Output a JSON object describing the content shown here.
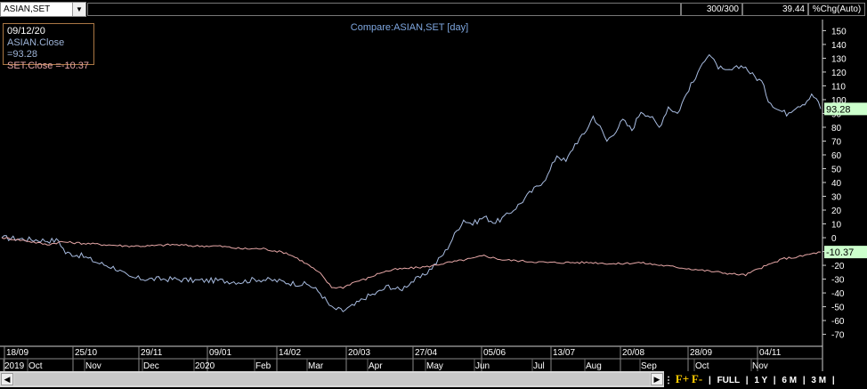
{
  "header": {
    "symbol": "ASIAN,SET",
    "bars": "300/300",
    "change": "39.44",
    "mode": "%Chg(Auto)"
  },
  "legend": {
    "date": "09/12/20",
    "asian": "ASIAN.Close  =93.28",
    "set": "SET.Close  =-10.37"
  },
  "colors": {
    "asian": "#a9bde2",
    "set": "#e8a8a8",
    "title": "#7fa7e0"
  },
  "footer": {
    "f_plus": "F+",
    "f_minus": "F-",
    "ranges": [
      "FULL",
      "1 Y",
      "6 M",
      "3 M"
    ]
  },
  "chart_data": {
    "type": "line",
    "title": "Compare:ASIAN,SET [day]",
    "ylim": [
      -78,
      158
    ],
    "yticks": [
      150,
      140,
      130,
      120,
      110,
      100,
      90,
      80,
      70,
      60,
      50,
      40,
      30,
      20,
      10,
      0,
      -10,
      -20,
      -30,
      -40,
      -50,
      -60,
      -70
    ],
    "x_date_ticks": [
      "18/09",
      "25/10",
      "29/11",
      "09/01",
      "14/02",
      "20/03",
      "27/04",
      "05/06",
      "13/07",
      "20/08",
      "28/09",
      "04/11"
    ],
    "x_month_ticks": [
      "2019",
      "Oct",
      "Nov",
      "Dec",
      "2020",
      "Feb",
      "Mar",
      "Apr",
      "May",
      "Jun",
      "Jul",
      "Aug",
      "Sep",
      "Oct",
      "Nov"
    ],
    "last_values": {
      "ASIAN": "93.28",
      "SET": "-10.37"
    },
    "series": [
      {
        "name": "ASIAN.Close",
        "points": [
          [
            0,
            0
          ],
          [
            10,
            -1
          ],
          [
            20,
            -2
          ],
          [
            25,
            -2
          ],
          [
            28,
            -11
          ],
          [
            35,
            -13
          ],
          [
            42,
            -18
          ],
          [
            50,
            -22
          ],
          [
            56,
            -29
          ],
          [
            65,
            -30
          ],
          [
            75,
            -30
          ],
          [
            85,
            -31
          ],
          [
            95,
            -31
          ],
          [
            105,
            -32
          ],
          [
            112,
            -30
          ],
          [
            120,
            -31
          ],
          [
            128,
            -33
          ],
          [
            135,
            -34
          ],
          [
            140,
            -40
          ],
          [
            145,
            -51
          ],
          [
            150,
            -53
          ],
          [
            155,
            -49
          ],
          [
            160,
            -43
          ],
          [
            165,
            -40
          ],
          [
            170,
            -35
          ],
          [
            175,
            -38
          ],
          [
            180,
            -32
          ],
          [
            185,
            -28
          ],
          [
            190,
            -20
          ],
          [
            195,
            -10
          ],
          [
            200,
            5
          ],
          [
            203,
            13
          ],
          [
            207,
            10
          ],
          [
            212,
            15
          ],
          [
            217,
            11
          ],
          [
            222,
            16
          ],
          [
            228,
            25
          ],
          [
            232,
            32
          ],
          [
            236,
            38
          ],
          [
            240,
            45
          ],
          [
            244,
            60
          ],
          [
            248,
            55
          ],
          [
            252,
            68
          ],
          [
            256,
            75
          ],
          [
            260,
            88
          ],
          [
            263,
            80
          ],
          [
            266,
            70
          ],
          [
            270,
            78
          ],
          [
            273,
            85
          ],
          [
            277,
            78
          ],
          [
            281,
            92
          ],
          [
            285,
            88
          ],
          [
            289,
            80
          ],
          [
            293,
            95
          ],
          [
            297,
            90
          ],
          [
            302,
            108
          ],
          [
            306,
            118
          ],
          [
            308,
            128
          ],
          [
            311,
            133
          ],
          [
            314,
            125
          ],
          [
            318,
            120
          ],
          [
            322,
            122
          ],
          [
            326,
            125
          ],
          [
            330,
            118
          ],
          [
            334,
            113
          ],
          [
            337,
            100
          ],
          [
            341,
            93
          ],
          [
            345,
            90
          ],
          [
            349,
            95
          ],
          [
            353,
            98
          ],
          [
            356,
            103
          ],
          [
            358,
            101
          ],
          [
            360,
            93.28
          ]
        ]
      },
      {
        "name": "SET.Close",
        "points": [
          [
            0,
            0
          ],
          [
            10,
            -2
          ],
          [
            20,
            -5
          ],
          [
            26,
            -3
          ],
          [
            35,
            -4
          ],
          [
            45,
            -5
          ],
          [
            55,
            -6
          ],
          [
            65,
            -6
          ],
          [
            75,
            -5
          ],
          [
            85,
            -6
          ],
          [
            95,
            -6
          ],
          [
            105,
            -8
          ],
          [
            115,
            -8
          ],
          [
            125,
            -11
          ],
          [
            130,
            -15
          ],
          [
            135,
            -20
          ],
          [
            140,
            -26
          ],
          [
            145,
            -36
          ],
          [
            150,
            -36
          ],
          [
            155,
            -32
          ],
          [
            160,
            -30
          ],
          [
            167,
            -25
          ],
          [
            173,
            -23
          ],
          [
            180,
            -22
          ],
          [
            187,
            -21
          ],
          [
            193,
            -19
          ],
          [
            200,
            -17
          ],
          [
            207,
            -15
          ],
          [
            212,
            -13
          ],
          [
            220,
            -16
          ],
          [
            230,
            -17
          ],
          [
            240,
            -18
          ],
          [
            250,
            -18
          ],
          [
            260,
            -18
          ],
          [
            270,
            -19
          ],
          [
            280,
            -18
          ],
          [
            290,
            -20
          ],
          [
            300,
            -22
          ],
          [
            310,
            -24
          ],
          [
            320,
            -26
          ],
          [
            327,
            -27
          ],
          [
            332,
            -23
          ],
          [
            338,
            -19
          ],
          [
            344,
            -15
          ],
          [
            350,
            -14
          ],
          [
            355,
            -12
          ],
          [
            360,
            -10.37
          ]
        ]
      }
    ]
  }
}
